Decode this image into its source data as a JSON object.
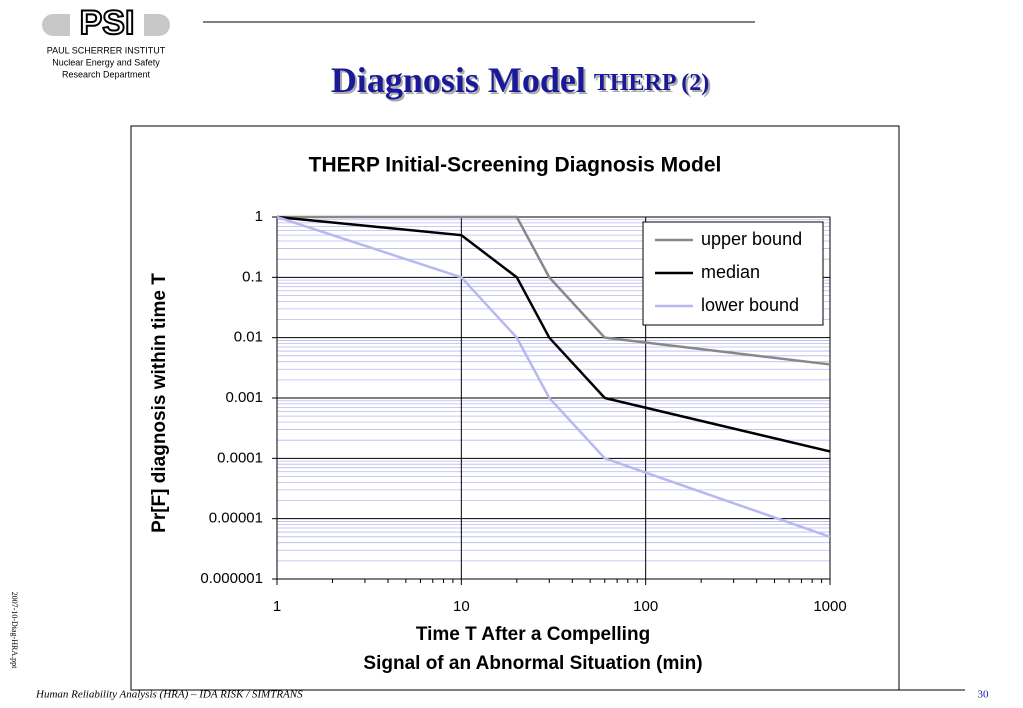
{
  "header": {
    "logo": "PSI",
    "institute": "PAUL SCHERRER INSTITUT",
    "division": "Nuclear Energy and Safety",
    "department": "Research Department",
    "title": "Diagnosis Model",
    "title_suffix": "THERP (2)"
  },
  "footer": {
    "text": "Human Reliability Analysis (HRA) – IDA RISK / SIMTRANS",
    "page": "30",
    "file": "2007-10-Diag-HRA.ppt"
  },
  "chart_data": {
    "type": "line",
    "title": "THERP Initial-Screening Diagnosis Model",
    "xlabel": [
      "Time T After a Compelling",
      "Signal of an Abnormal Situation (min)"
    ],
    "ylabel": "Pr[F] diagnosis within time T",
    "xscale": "log",
    "yscale": "log",
    "xlim": [
      1,
      1000
    ],
    "ylim": [
      1e-06,
      1
    ],
    "xticks": [
      1,
      10,
      100,
      1000
    ],
    "yticks": [
      1,
      0.1,
      0.01,
      0.001,
      0.0001,
      1e-05,
      1e-06
    ],
    "grid": true,
    "legend": "upper right",
    "series": [
      {
        "name": "upper bound",
        "color": "#888888",
        "x": [
          1,
          20,
          30,
          60,
          1000
        ],
        "values": [
          1,
          1,
          0.1,
          0.01,
          0.0036
        ]
      },
      {
        "name": "median",
        "color": "#000000",
        "x": [
          1,
          10,
          20,
          30,
          60,
          1000
        ],
        "values": [
          1,
          0.5,
          0.1,
          0.01,
          0.001,
          0.00013
        ]
      },
      {
        "name": "lower bound",
        "color": "#b8b8f0",
        "x": [
          1,
          10,
          20,
          30,
          60,
          1000
        ],
        "values": [
          1,
          0.1,
          0.01,
          0.001,
          0.0001,
          5e-06
        ]
      }
    ]
  }
}
